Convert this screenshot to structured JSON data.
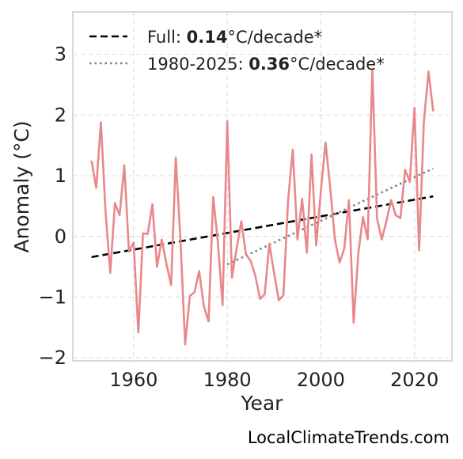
{
  "chart_data": {
    "type": "line",
    "xlabel": "Year",
    "ylabel": "Anomaly (°C)",
    "xlim": [
      1947,
      2028
    ],
    "ylim": [
      -2.05,
      3.7
    ],
    "x_ticks": [
      1960,
      1980,
      2000,
      2020
    ],
    "x_tick_labels": [
      "1960",
      "1980",
      "2000",
      "2020"
    ],
    "y_ticks": [
      -2,
      -1,
      0,
      1,
      2,
      3
    ],
    "y_tick_labels": [
      "−2",
      "−1",
      "0",
      "1",
      "2",
      "3"
    ],
    "grid": true,
    "legend_position": "top-left",
    "series": [
      {
        "color": "#e8888a",
        "x": [
          1951,
          1952,
          1953,
          1954,
          1955,
          1956,
          1957,
          1958,
          1959,
          1960,
          1961,
          1962,
          1963,
          1964,
          1965,
          1966,
          1967,
          1968,
          1969,
          1970,
          1971,
          1972,
          1973,
          1974,
          1975,
          1976,
          1977,
          1978,
          1979,
          1980,
          1981,
          1982,
          1983,
          1984,
          1985,
          1986,
          1987,
          1988,
          1989,
          1990,
          1991,
          1992,
          1993,
          1994,
          1995,
          1996,
          1997,
          1998,
          1999,
          2000,
          2001,
          2002,
          2003,
          2004,
          2005,
          2006,
          2007,
          2008,
          2009,
          2010,
          2011,
          2012,
          2013,
          2014,
          2015,
          2016,
          2017,
          2018,
          2019,
          2020,
          2021,
          2022,
          2023,
          2024
        ],
        "y": [
          1.25,
          0.8,
          1.88,
          0.4,
          -0.6,
          0.55,
          0.35,
          1.17,
          -0.25,
          -0.1,
          -1.58,
          0.05,
          0.04,
          0.53,
          -0.5,
          -0.05,
          -0.45,
          -0.8,
          1.3,
          -0.05,
          -1.78,
          -0.98,
          -0.92,
          -0.57,
          -1.15,
          -1.4,
          0.65,
          -0.1,
          -1.13,
          1.9,
          -0.68,
          -0.2,
          0.25,
          -0.3,
          -0.4,
          -0.65,
          -1.03,
          -0.95,
          -0.12,
          -0.6,
          -1.05,
          -0.97,
          0.6,
          1.43,
          -0.05,
          0.62,
          -0.27,
          1.35,
          -0.15,
          0.75,
          1.55,
          0.8,
          -0.05,
          -0.43,
          -0.2,
          0.6,
          -1.42,
          -0.28,
          0.32,
          -0.05,
          2.75,
          0.3,
          -0.05,
          0.25,
          0.6,
          0.35,
          0.3,
          1.1,
          0.9,
          2.12,
          -0.23,
          1.88,
          2.72,
          2.06
        ]
      }
    ],
    "trends": [
      {
        "label_prefix": "Full: ",
        "label_value": "0.14",
        "label_suffix": "°C/decade*",
        "style": "dashed",
        "color": "#000000",
        "x": [
          1951,
          2024
        ],
        "y": [
          -0.34,
          0.66
        ]
      },
      {
        "label_prefix": "1980-2025: ",
        "label_value": "0.36",
        "label_suffix": "°C/decade*",
        "style": "dotted",
        "color": "#808080",
        "x": [
          1980,
          2024
        ],
        "y": [
          -0.46,
          1.12
        ]
      }
    ]
  },
  "credit": "LocalClimateTrends.com"
}
